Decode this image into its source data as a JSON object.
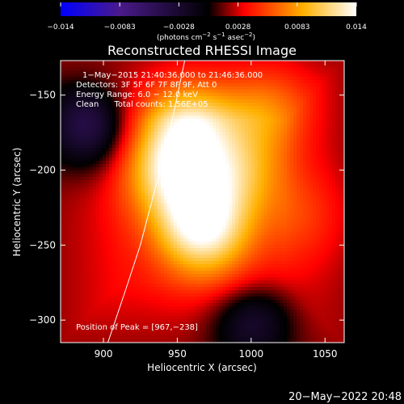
{
  "chart_data": {
    "type": "heatmap",
    "title": "Reconstructed RHESSI Image",
    "xlabel": "Heliocentric X (arcsec)",
    "ylabel": "Heliocentric Y (arcsec)",
    "xlim": [
      871,
      1063
    ],
    "ylim": [
      -315,
      -127
    ],
    "x_ticks": [
      900,
      950,
      1000,
      1050
    ],
    "y_ticks": [
      -150,
      -200,
      -250,
      -300
    ],
    "x_tick_labels": [
      "900",
      "950",
      "1000",
      "1050"
    ],
    "y_tick_labels": [
      "−150",
      "−200",
      "−250",
      "−300"
    ],
    "colorbar": {
      "min": -0.014,
      "max": 0.014,
      "tick_labels": [
        "−0.014",
        "−0.0083",
        "−0.0028",
        "0.0028",
        "0.0083",
        "0.014"
      ],
      "units_prefix": "(photons cm",
      "units_e1": "−2",
      "units_mid1": " s",
      "units_e2": "−1",
      "units_mid2": " asec",
      "units_e3": "−2",
      "units_suffix": ")",
      "colors": [
        "#0000ff",
        "#4a1a8a",
        "#000000",
        "#ff0000",
        "#ffb000",
        "#ffffff"
      ]
    },
    "sources": [
      {
        "x": 967,
        "y": -238,
        "peak": 0.014
      },
      {
        "x": 947,
        "y": -200,
        "peak": 0.012
      },
      {
        "x": 958,
        "y": -165,
        "peak": 0.011
      },
      {
        "x": 990,
        "y": -200,
        "peak": 0.009
      },
      {
        "x": 1010,
        "y": -155,
        "peak": 0.008
      },
      {
        "x": 1040,
        "y": -230,
        "peak": 0.006
      },
      {
        "x": 990,
        "y": -290,
        "peak": 0.005
      }
    ],
    "negative_regions": [
      {
        "x": 885,
        "y": -170,
        "value": -0.005
      },
      {
        "x": 1000,
        "y": -305,
        "value": -0.004
      }
    ],
    "info_lines": [
      "1−May−2015 21:40:36.000 to 21:46:36.000",
      "Detectors: 3F 5F 6F 7F 8F 9F, Att 0",
      "Energy Range: 6.0 − 12.0 keV",
      "Clean      Total counts: 1.56E+05"
    ],
    "peak_text": "Position of Peak = [967,−238]",
    "limb": [
      [
        903,
        -315
      ],
      [
        915,
        -280
      ],
      [
        925,
        -250
      ],
      [
        933,
        -220
      ],
      [
        941,
        -190
      ],
      [
        948,
        -160
      ],
      [
        955,
        -127
      ]
    ]
  },
  "footer": {
    "timestamp": "20−May−2022 20:48"
  }
}
